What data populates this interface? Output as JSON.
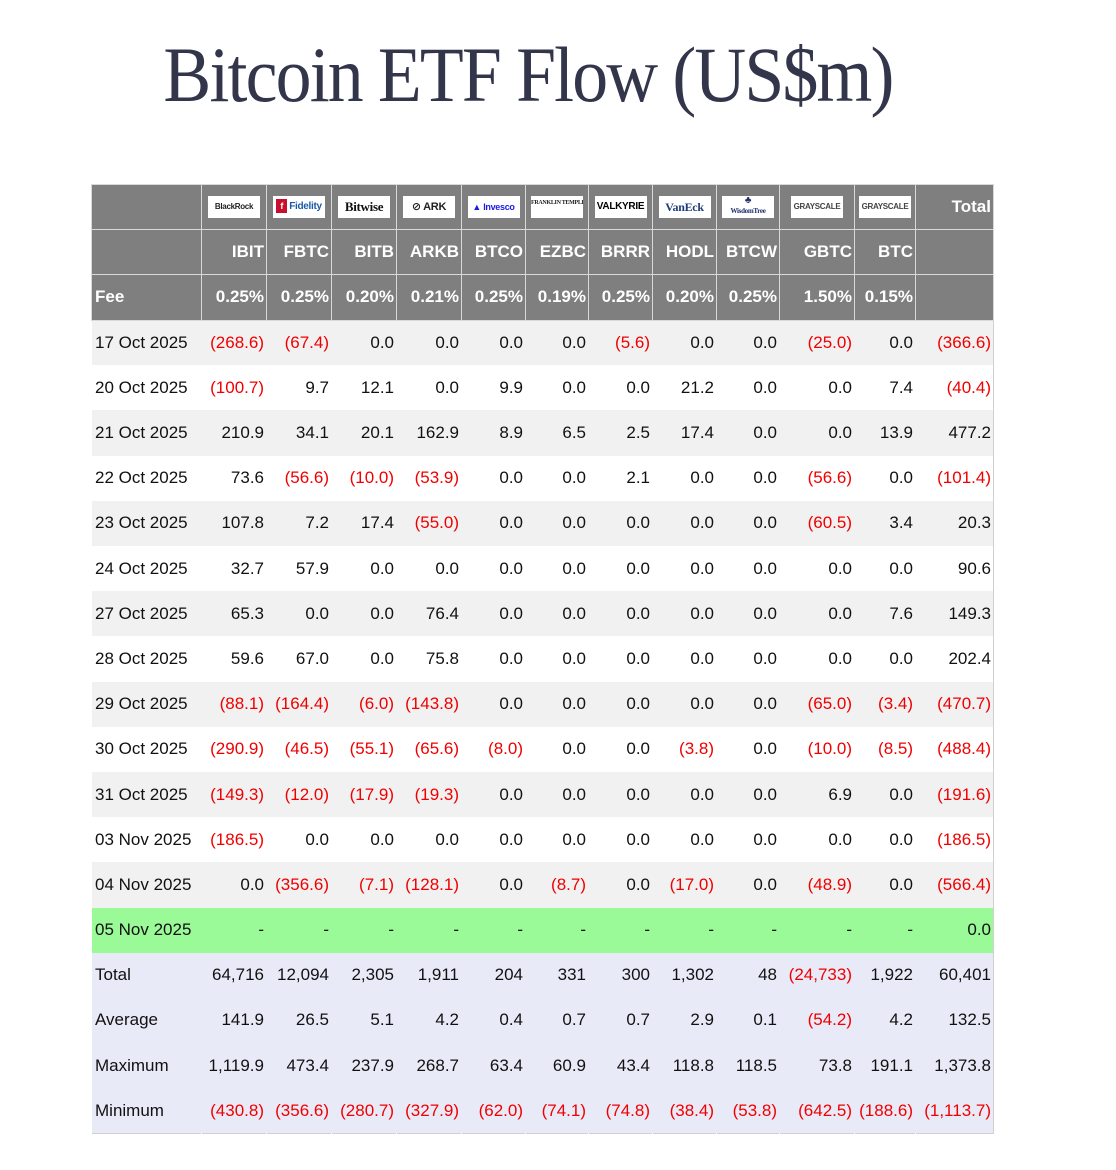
{
  "title": "Bitcoin ETF Flow (US$m)",
  "table": {
    "issuers": [
      {
        "name": "BlackRock",
        "logo": "blackrock-logo"
      },
      {
        "name": "Fidelity",
        "logo": "fidelity-logo"
      },
      {
        "name": "Bitwise",
        "logo": "bitwise-logo"
      },
      {
        "name": "ARK INVEST",
        "logo": "ark-invest-logo"
      },
      {
        "name": "Invesco",
        "logo": "invesco-logo"
      },
      {
        "name": "FRANKLIN TEMPLETON",
        "logo": "franklin-templeton-logo"
      },
      {
        "name": "VALKYRIE",
        "logo": "valkyrie-logo"
      },
      {
        "name": "VanEck",
        "logo": "vaneck-logo"
      },
      {
        "name": "WisdomTree",
        "logo": "wisdomtree-logo"
      },
      {
        "name": "GRAYSCALE",
        "logo": "grayscale-logo"
      },
      {
        "name": "GRAYSCALE",
        "logo": "grayscale-logo"
      }
    ],
    "total_header": "Total",
    "tickers": [
      "IBIT",
      "FBTC",
      "BITB",
      "ARKB",
      "BTCO",
      "EZBC",
      "BRRR",
      "HODL",
      "BTCW",
      "GBTC",
      "BTC"
    ],
    "fee_label": "Fee",
    "fees": [
      "0.25%",
      "0.25%",
      "0.20%",
      "0.21%",
      "0.25%",
      "0.19%",
      "0.25%",
      "0.20%",
      "0.25%",
      "1.50%",
      "0.15%"
    ],
    "rows": [
      {
        "date": "17 Oct 2025",
        "values": [
          "(268.6)",
          "(67.4)",
          "0.0",
          "0.0",
          "0.0",
          "0.0",
          "(5.6)",
          "0.0",
          "0.0",
          "(25.0)",
          "0.0"
        ],
        "total": "(366.6)"
      },
      {
        "date": "20 Oct 2025",
        "values": [
          "(100.7)",
          "9.7",
          "12.1",
          "0.0",
          "9.9",
          "0.0",
          "0.0",
          "21.2",
          "0.0",
          "0.0",
          "7.4"
        ],
        "total": "(40.4)"
      },
      {
        "date": "21 Oct 2025",
        "values": [
          "210.9",
          "34.1",
          "20.1",
          "162.9",
          "8.9",
          "6.5",
          "2.5",
          "17.4",
          "0.0",
          "0.0",
          "13.9"
        ],
        "total": "477.2"
      },
      {
        "date": "22 Oct 2025",
        "values": [
          "73.6",
          "(56.6)",
          "(10.0)",
          "(53.9)",
          "0.0",
          "0.0",
          "2.1",
          "0.0",
          "0.0",
          "(56.6)",
          "0.0"
        ],
        "total": "(101.4)"
      },
      {
        "date": "23 Oct 2025",
        "values": [
          "107.8",
          "7.2",
          "17.4",
          "(55.0)",
          "0.0",
          "0.0",
          "0.0",
          "0.0",
          "0.0",
          "(60.5)",
          "3.4"
        ],
        "total": "20.3"
      },
      {
        "date": "24 Oct 2025",
        "values": [
          "32.7",
          "57.9",
          "0.0",
          "0.0",
          "0.0",
          "0.0",
          "0.0",
          "0.0",
          "0.0",
          "0.0",
          "0.0"
        ],
        "total": "90.6"
      },
      {
        "date": "27 Oct 2025",
        "values": [
          "65.3",
          "0.0",
          "0.0",
          "76.4",
          "0.0",
          "0.0",
          "0.0",
          "0.0",
          "0.0",
          "0.0",
          "7.6"
        ],
        "total": "149.3"
      },
      {
        "date": "28 Oct 2025",
        "values": [
          "59.6",
          "67.0",
          "0.0",
          "75.8",
          "0.0",
          "0.0",
          "0.0",
          "0.0",
          "0.0",
          "0.0",
          "0.0"
        ],
        "total": "202.4"
      },
      {
        "date": "29 Oct 2025",
        "values": [
          "(88.1)",
          "(164.4)",
          "(6.0)",
          "(143.8)",
          "0.0",
          "0.0",
          "0.0",
          "0.0",
          "0.0",
          "(65.0)",
          "(3.4)"
        ],
        "total": "(470.7)"
      },
      {
        "date": "30 Oct 2025",
        "values": [
          "(290.9)",
          "(46.5)",
          "(55.1)",
          "(65.6)",
          "(8.0)",
          "0.0",
          "0.0",
          "(3.8)",
          "0.0",
          "(10.0)",
          "(8.5)"
        ],
        "total": "(488.4)"
      },
      {
        "date": "31 Oct 2025",
        "values": [
          "(149.3)",
          "(12.0)",
          "(17.9)",
          "(19.3)",
          "0.0",
          "0.0",
          "0.0",
          "0.0",
          "0.0",
          "6.9",
          "0.0"
        ],
        "total": "(191.6)"
      },
      {
        "date": "03 Nov 2025",
        "values": [
          "(186.5)",
          "0.0",
          "0.0",
          "0.0",
          "0.0",
          "0.0",
          "0.0",
          "0.0",
          "0.0",
          "0.0",
          "0.0"
        ],
        "total": "(186.5)"
      },
      {
        "date": "04 Nov 2025",
        "values": [
          "0.0",
          "(356.6)",
          "(7.1)",
          "(128.1)",
          "0.0",
          "(8.7)",
          "0.0",
          "(17.0)",
          "0.0",
          "(48.9)",
          "0.0"
        ],
        "total": "(566.4)"
      },
      {
        "date": "05 Nov 2025",
        "values": [
          "-",
          "-",
          "-",
          "-",
          "-",
          "-",
          "-",
          "-",
          "-",
          "-",
          "-"
        ],
        "total": "0.0",
        "highlight": true
      }
    ],
    "summary": [
      {
        "label": "Total",
        "values": [
          "64,716",
          "12,094",
          "2,305",
          "1,911",
          "204",
          "331",
          "300",
          "1,302",
          "48",
          "(24,733)",
          "1,922"
        ],
        "total": "60,401"
      },
      {
        "label": "Average",
        "values": [
          "141.9",
          "26.5",
          "5.1",
          "4.2",
          "0.4",
          "0.7",
          "0.7",
          "2.9",
          "0.1",
          "(54.2)",
          "4.2"
        ],
        "total": "132.5"
      },
      {
        "label": "Maximum",
        "values": [
          "1,119.9",
          "473.4",
          "237.9",
          "268.7",
          "63.4",
          "60.9",
          "43.4",
          "118.8",
          "118.5",
          "73.8",
          "191.1"
        ],
        "total": "1,373.8"
      },
      {
        "label": "Minimum",
        "values": [
          "(430.8)",
          "(356.6)",
          "(280.7)",
          "(327.9)",
          "(62.0)",
          "(74.1)",
          "(74.8)",
          "(38.4)",
          "(53.8)",
          "(642.5)",
          "(188.6)"
        ],
        "total": "(1,113.7)"
      }
    ]
  },
  "colors": {
    "header_bg": "#7f7f7f",
    "negative": "#f00000",
    "row_alt": "#f1f1f1",
    "today_highlight": "#9afa98",
    "summary_bg": "#e9eaf7",
    "title": "#33364b"
  }
}
